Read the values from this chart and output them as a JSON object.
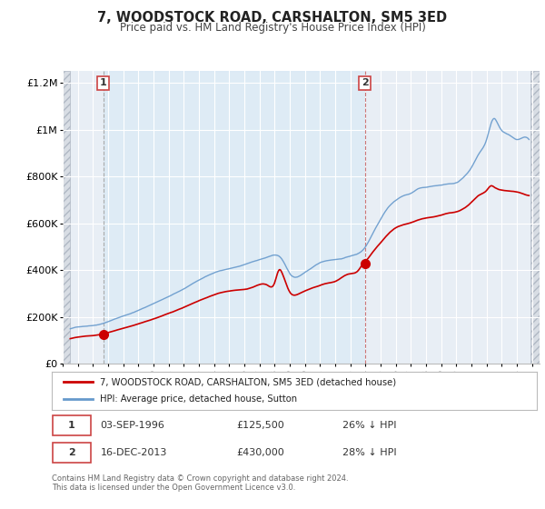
{
  "title": "7, WOODSTOCK ROAD, CARSHALTON, SM5 3ED",
  "subtitle": "Price paid vs. HM Land Registry's House Price Index (HPI)",
  "legend_line1": "7, WOODSTOCK ROAD, CARSHALTON, SM5 3ED (detached house)",
  "legend_line2": "HPI: Average price, detached house, Sutton",
  "annotation1_date": "03-SEP-1996",
  "annotation1_price": "£125,500",
  "annotation1_hpi": "26% ↓ HPI",
  "annotation2_date": "16-DEC-2013",
  "annotation2_price": "£430,000",
  "annotation2_hpi": "28% ↓ HPI",
  "sale1_year": 1996.67,
  "sale1_value": 125500,
  "sale2_year": 2013.96,
  "sale2_value": 430000,
  "red_color": "#cc0000",
  "blue_color": "#6699cc",
  "blue_fill": "#ddeeff",
  "plot_bg": "#e8eef5",
  "ylim_max": 1250000,
  "ylim_min": 0,
  "xlim_min": 1994.0,
  "xlim_max": 2025.5,
  "footer_text": "Contains HM Land Registry data © Crown copyright and database right 2024.\nThis data is licensed under the Open Government Licence v3.0.",
  "ytick_values": [
    0,
    200000,
    400000,
    600000,
    800000,
    1000000,
    1200000
  ]
}
